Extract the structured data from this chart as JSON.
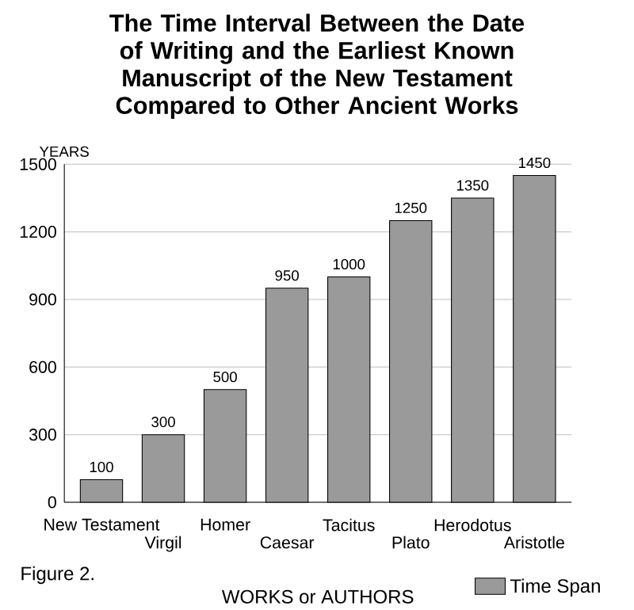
{
  "chart_data": {
    "type": "bar",
    "title": "The Time Interval Between the Date of Writing and the Earliest Known Manuscript of the New Testament Compared to Other Ancient Works",
    "categories": [
      "New Testament",
      "Virgil",
      "Homer",
      "Caesar",
      "Tacitus",
      "Plato",
      "Herodotus",
      "Aristotle"
    ],
    "series": [
      {
        "name": "Time Span",
        "color": "#9a9a9a",
        "values": [
          100,
          300,
          500,
          950,
          1000,
          1250,
          1350,
          1450
        ]
      }
    ],
    "ylabel": "YEARS",
    "xlabel": "WORKS or AUTHORS",
    "ylim": [
      0,
      1500
    ],
    "yticks": [
      0,
      300,
      600,
      900,
      1200,
      1500
    ],
    "grid": "y",
    "legend": "bottom right",
    "data_labels": true,
    "annotations": [
      "Figure 2."
    ]
  }
}
